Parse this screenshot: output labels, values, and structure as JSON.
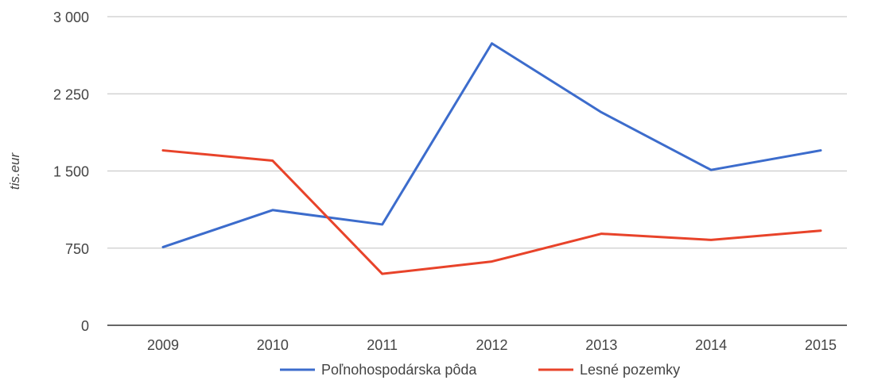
{
  "chart_data": {
    "type": "line",
    "title": "",
    "xlabel": "",
    "ylabel": "tis.eur",
    "categories": [
      "2009",
      "2010",
      "2011",
      "2012",
      "2013",
      "2014",
      "2015"
    ],
    "series": [
      {
        "name": "Poľnohospodárska pôda",
        "color": "#3c6ccc",
        "values": [
          760,
          1120,
          980,
          2740,
          2070,
          1510,
          1700
        ]
      },
      {
        "name": "Lesné pozemky",
        "color": "#e8432a",
        "values": [
          1700,
          1600,
          500,
          620,
          890,
          830,
          920
        ]
      }
    ],
    "ylim": [
      0,
      3000
    ],
    "yticks": [
      0,
      750,
      1500,
      2250,
      3000
    ],
    "ytick_labels": [
      "0",
      "750",
      "1 500",
      "2 250",
      "3 000"
    ],
    "grid": true,
    "legend_position": "bottom",
    "colors": {
      "grid": "#cccccc",
      "axis": "#333333",
      "text": "#444444"
    }
  }
}
